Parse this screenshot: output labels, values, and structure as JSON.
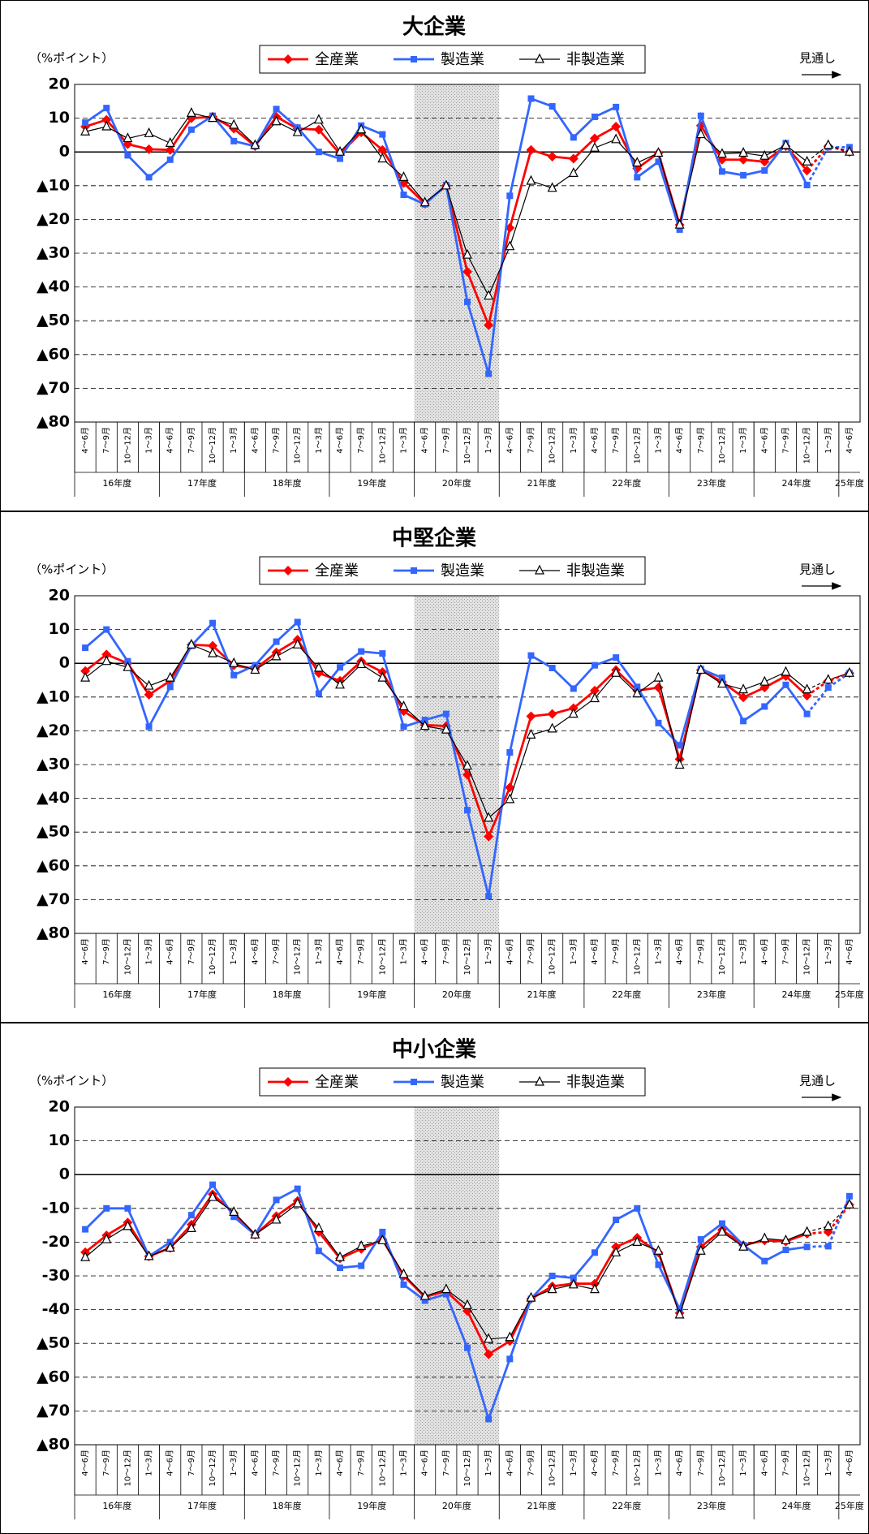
{
  "chart_data": [
    {
      "type": "line",
      "title": "大企業",
      "unit_label": "（%ポイント）",
      "note": "見通し",
      "categories": [
        "4～6月",
        "7～9月",
        "10～12月",
        "1～3月",
        "4～6月",
        "7～9月",
        "10～12月",
        "1～3月",
        "4～6月",
        "7～9月",
        "10～12月",
        "1～3月",
        "4～6月",
        "7～9月",
        "10～12月",
        "1～3月",
        "4～6月",
        "7～9月",
        "10～12月",
        "1～3月",
        "4～6月",
        "7～9月",
        "10～12月",
        "1～3月",
        "4～6月",
        "7～9月",
        "10～12月",
        "1～3月",
        "4～6月",
        "7～9月",
        "10～12月",
        "1～3月",
        "4～6月",
        "7～9月",
        "10～12月",
        "1～3月",
        "4～6月"
      ],
      "category_groups": [
        "16年度",
        "17年度",
        "18年度",
        "19年度",
        "20年度",
        "21年度",
        "22年度",
        "23年度",
        "24年度",
        "25年度"
      ],
      "shade_categories": [
        16,
        19
      ],
      "forecast_start": 35,
      "ylim": [
        -80,
        20
      ],
      "yticks": [
        20,
        10,
        0,
        {
          "value": -10,
          "label": "▲10"
        },
        {
          "value": -20,
          "label": "▲20"
        },
        {
          "value": -30,
          "label": "▲30"
        },
        {
          "value": -40,
          "label": "▲40"
        },
        {
          "value": -50,
          "label": "▲50"
        },
        {
          "value": -60,
          "label": "▲60"
        },
        {
          "value": -70,
          "label": "▲70"
        },
        {
          "value": -80,
          "label": "▲80"
        }
      ],
      "grid": true,
      "series": [
        {
          "name": "全産業",
          "color": "#ff0000",
          "marker": "diamond",
          "values": [
            7.5,
            9.5,
            2.3,
            0.8,
            0.6,
            10,
            10.4,
            6.9,
            1.7,
            10.4,
            6.9,
            6.6,
            -0.6,
            5.8,
            0.6,
            -9.2,
            -15.3,
            -10,
            -35.5,
            -51.3,
            -22.5,
            0.6,
            -1.4,
            -2,
            4,
            7.5,
            -4.9,
            -0.3,
            -21.6,
            7.8,
            -2.3,
            -2.3,
            -2.9,
            1.7,
            -5.5,
            1.7,
            0
          ]
        },
        {
          "name": "製造業",
          "color": "#3366ff",
          "marker": "square",
          "values": [
            8.7,
            13,
            -1,
            -7.5,
            -2.3,
            6.6,
            10.7,
            3.2,
            1.7,
            12.7,
            7.2,
            0,
            -2,
            7.8,
            5.2,
            -12.7,
            -15.5,
            -9.8,
            -44.4,
            -65.7,
            -13,
            15.8,
            13.5,
            4.3,
            10.4,
            13.3,
            -7.5,
            -2.9,
            -23,
            10.7,
            -5.8,
            -6.9,
            -5.5,
            2.6,
            -9.8,
            1.4,
            1.4
          ]
        },
        {
          "name": "非製造業",
          "color": "#000000",
          "marker": "triangle",
          "values": [
            6,
            7.5,
            4,
            5.5,
            2.6,
            11.5,
            10,
            8,
            2,
            9,
            5.8,
            9.5,
            0,
            6.6,
            -2,
            -7.5,
            -15,
            -10,
            -30.5,
            -42.6,
            -28,
            -8.6,
            -10.7,
            -6.3,
            1.2,
            3.7,
            -3.2,
            -0.3,
            -21.6,
            5.2,
            -0.6,
            -0.3,
            -1.2,
            2,
            -2.9,
            2,
            0
          ]
        }
      ]
    },
    {
      "type": "line",
      "title": "中堅企業",
      "unit_label": "（%ポイント）",
      "note": "見通し",
      "categories": [
        "4～6月",
        "7～9月",
        "10～12月",
        "1～3月",
        "4～6月",
        "7～9月",
        "10～12月",
        "1～3月",
        "4～6月",
        "7～9月",
        "10～12月",
        "1～3月",
        "4～6月",
        "7～9月",
        "10～12月",
        "1～3月",
        "4～6月",
        "7～9月",
        "10～12月",
        "1～3月",
        "4～6月",
        "7～9月",
        "10～12月",
        "1～3月",
        "4～6月",
        "7～9月",
        "10～12月",
        "1～3月",
        "4～6月",
        "7～9月",
        "10～12月",
        "1～3月",
        "4～6月",
        "7～9月",
        "10～12月",
        "1～3月",
        "4～6月"
      ],
      "category_groups": [
        "16年度",
        "17年度",
        "18年度",
        "19年度",
        "20年度",
        "21年度",
        "22年度",
        "23年度",
        "24年度",
        "25年度"
      ],
      "shade_categories": [
        16,
        19
      ],
      "forecast_start": 35,
      "ylim": [
        -80,
        20
      ],
      "yticks": [
        20,
        10,
        0,
        {
          "value": -10,
          "label": "▲10"
        },
        {
          "value": -20,
          "label": "▲20"
        },
        {
          "value": -30,
          "label": "▲30"
        },
        {
          "value": -40,
          "label": "▲40"
        },
        {
          "value": -50,
          "label": "▲50"
        },
        {
          "value": -60,
          "label": "▲60"
        },
        {
          "value": -70,
          "label": "▲70"
        },
        {
          "value": -80,
          "label": "▲80"
        }
      ],
      "grid": true,
      "series": [
        {
          "name": "全産業",
          "color": "#ff0000",
          "marker": "diamond",
          "values": [
            -2.3,
            2.6,
            0,
            -9.3,
            -5.2,
            5.5,
            5.2,
            -0.6,
            -1.7,
            3.2,
            7,
            -2.9,
            -5.2,
            0.6,
            -2.6,
            -14.2,
            -18.3,
            -18.6,
            -33,
            -51.3,
            -36.8,
            -15.7,
            -15,
            -13.3,
            -8.1,
            -2,
            -8.1,
            -7.2,
            -28.4,
            -2,
            -5.5,
            -10.1,
            -7.2,
            -3.8,
            -9.6,
            -5.2,
            -2.9
          ]
        },
        {
          "name": "製造業",
          "color": "#3366ff",
          "marker": "square",
          "values": [
            4.6,
            10,
            0.6,
            -18.8,
            -7,
            5.2,
            11.9,
            -3.5,
            -0.6,
            6.4,
            12.2,
            -9,
            -1.2,
            3.5,
            2.9,
            -18.8,
            -16.8,
            -15,
            -43.5,
            -69,
            -26.4,
            2.3,
            -1.4,
            -7.5,
            -0.6,
            1.7,
            -7,
            -17.7,
            -24.3,
            -1.7,
            -4.3,
            -17.1,
            -12.8,
            -6.4,
            -15,
            -7.2,
            -2.9
          ]
        },
        {
          "name": "非製造業",
          "color": "#000000",
          "marker": "triangle",
          "values": [
            -4.3,
            0.6,
            -1.2,
            -6.7,
            -4.3,
            5.5,
            2.9,
            0,
            -2,
            2,
            5.5,
            -1.4,
            -6.4,
            -0.3,
            -4.3,
            -12.8,
            -18.6,
            -19.7,
            -30.4,
            -45.8,
            -40.3,
            -21.2,
            -19.4,
            -15,
            -10.4,
            -2.9,
            -9,
            -4.3,
            -30.1,
            -2,
            -6.1,
            -7.8,
            -5.5,
            -2.6,
            -7.8,
            -4.9,
            -2.9
          ]
        }
      ]
    },
    {
      "type": "line",
      "title": "中小企業",
      "unit_label": "（%ポイント）",
      "note": "見通し",
      "categories": [
        "4～6月",
        "7～9月",
        "10～12月",
        "1～3月",
        "4～6月",
        "7～9月",
        "10～12月",
        "1～3月",
        "4～6月",
        "7～9月",
        "10～12月",
        "1～3月",
        "4～6月",
        "7～9月",
        "10～12月",
        "1～3月",
        "4～6月",
        "7～9月",
        "10～12月",
        "1～3月",
        "4～6月",
        "7～9月",
        "10～12月",
        "1～3月",
        "4～6月",
        "7～9月",
        "10～12月",
        "1～3月",
        "4～6月",
        "7～9月",
        "10～12月",
        "1～3月",
        "4～6月",
        "7～9月",
        "10～12月",
        "1～3月",
        "4～6月"
      ],
      "category_groups": [
        "16年度",
        "17年度",
        "18年度",
        "19年度",
        "20年度",
        "21年度",
        "22年度",
        "23年度",
        "24年度",
        "25年度"
      ],
      "shade_categories": [
        16,
        19
      ],
      "forecast_start": 35,
      "ylim": [
        -80,
        20
      ],
      "yticks": [
        20,
        10,
        0,
        -10,
        -20,
        -30,
        -40,
        {
          "value": -50,
          "label": "▲50"
        },
        {
          "value": -60,
          "label": "▲60"
        },
        {
          "value": -70,
          "label": "▲70"
        },
        {
          "value": -80,
          "label": "▲80"
        }
      ],
      "grid": true,
      "series": [
        {
          "name": "全産業",
          "color": "#ff0000",
          "marker": "diamond",
          "values": [
            -23,
            -18,
            -14.2,
            -24.2,
            -21.7,
            -14.8,
            -5.8,
            -11.4,
            -17.8,
            -12.3,
            -7.8,
            -17,
            -24.8,
            -22,
            -19.2,
            -30,
            -36.2,
            -34.5,
            -40.4,
            -53.2,
            -49.3,
            -36.8,
            -33.1,
            -32.3,
            -32.3,
            -21.4,
            -18.7,
            -23.1,
            -41,
            -21.4,
            -16.4,
            -20.9,
            -19.5,
            -19.8,
            -17.5,
            -17,
            -8.9
          ]
        },
        {
          "name": "製造業",
          "color": "#3366ff",
          "marker": "square",
          "values": [
            -16.2,
            -10,
            -10,
            -24.2,
            -20,
            -12,
            -3,
            -12.5,
            -17.8,
            -7.5,
            -4.2,
            -22.6,
            -27.6,
            -27,
            -17,
            -32.6,
            -37.3,
            -35.4,
            -51.3,
            -72.4,
            -54.6,
            -36.8,
            -30,
            -30.6,
            -23.1,
            -13.4,
            -10,
            -26.7,
            -39.8,
            -19.2,
            -14.5,
            -20.9,
            -25.6,
            -22.3,
            -21.4,
            -21.2,
            -6.4
          ]
        },
        {
          "name": "非製造業",
          "color": "#000000",
          "marker": "triangle",
          "values": [
            -24.5,
            -19.2,
            -15.3,
            -24.2,
            -21.7,
            -15.9,
            -6.7,
            -11.1,
            -17.8,
            -13.4,
            -8.6,
            -15.9,
            -24.5,
            -21.2,
            -19.5,
            -29.5,
            -36,
            -34,
            -38.7,
            -48.7,
            -48.2,
            -36.5,
            -34,
            -32.6,
            -34,
            -23.1,
            -20,
            -22.6,
            -41.5,
            -22.6,
            -17,
            -21.4,
            -18.9,
            -19.5,
            -17,
            -15.3,
            -8.9
          ]
        }
      ]
    }
  ]
}
